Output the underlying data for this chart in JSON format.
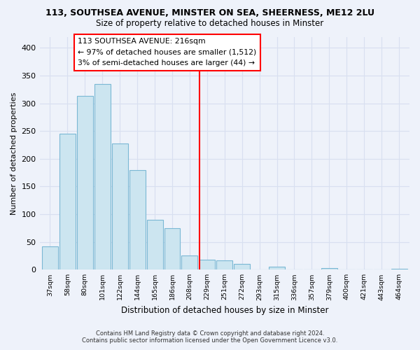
{
  "title": "113, SOUTHSEA AVENUE, MINSTER ON SEA, SHEERNESS, ME12 2LU",
  "subtitle": "Size of property relative to detached houses in Minster",
  "xlabel": "Distribution of detached houses by size in Minster",
  "ylabel": "Number of detached properties",
  "bar_labels": [
    "37sqm",
    "58sqm",
    "80sqm",
    "101sqm",
    "122sqm",
    "144sqm",
    "165sqm",
    "186sqm",
    "208sqm",
    "229sqm",
    "251sqm",
    "272sqm",
    "293sqm",
    "315sqm",
    "336sqm",
    "357sqm",
    "379sqm",
    "400sqm",
    "421sqm",
    "443sqm",
    "464sqm"
  ],
  "bar_values": [
    42,
    245,
    313,
    335,
    228,
    180,
    90,
    75,
    25,
    18,
    17,
    10,
    0,
    5,
    0,
    0,
    3,
    0,
    0,
    0,
    2
  ],
  "bar_color": "#cce5f0",
  "bar_edge_color": "#7ab8d4",
  "vline_x_index": 8.55,
  "vline_color": "red",
  "annotation_title": "113 SOUTHSEA AVENUE: 216sqm",
  "annotation_line1": "← 97% of detached houses are smaller (1,512)",
  "annotation_line2": "3% of semi-detached houses are larger (44) →",
  "ylim": [
    0,
    420
  ],
  "yticks": [
    0,
    50,
    100,
    150,
    200,
    250,
    300,
    350,
    400
  ],
  "footer_line1": "Contains HM Land Registry data © Crown copyright and database right 2024.",
  "footer_line2": "Contains public sector information licensed under the Open Government Licence v3.0.",
  "bg_color": "#eef2fa",
  "grid_color": "#d8dff0",
  "plot_bg_color": "#eef2fa"
}
